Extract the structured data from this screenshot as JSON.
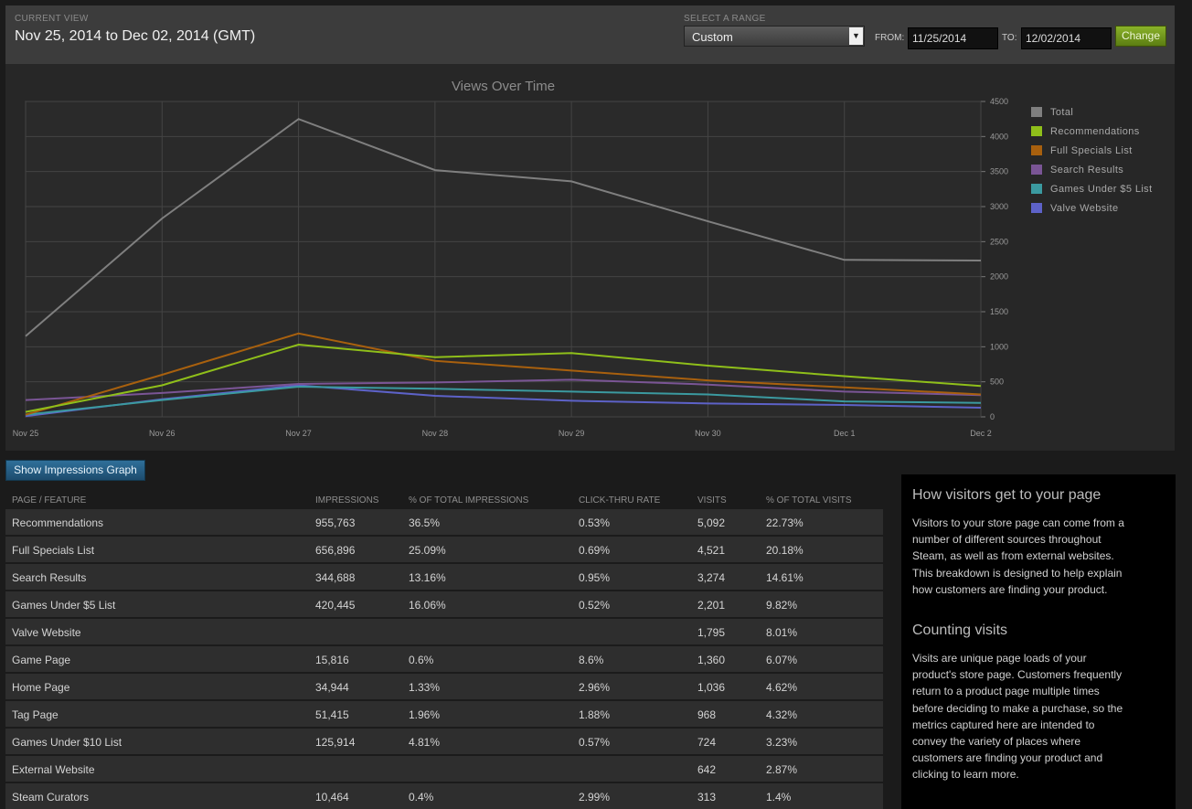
{
  "header": {
    "current_view_label": "CURRENT VIEW",
    "current_view_title": "Nov 25, 2014 to Dec 02, 2014 (GMT)",
    "range_label": "SELECT A RANGE",
    "range_value": "Custom",
    "from_label": "FROM:",
    "from_value": "11/25/2014",
    "to_label": "TO:",
    "to_value": "12/02/2014",
    "change_label": "Change"
  },
  "chart_data": {
    "type": "line",
    "title": "Views Over Time",
    "categories": [
      "Nov 25",
      "Nov 26",
      "Nov 27",
      "Nov 28",
      "Nov 29",
      "Nov 30",
      "Dec 1",
      "Dec 2"
    ],
    "ylim": [
      0,
      4500
    ],
    "yticks": [
      0,
      500,
      1000,
      1500,
      2000,
      2500,
      3000,
      3500,
      4000,
      4500
    ],
    "series": [
      {
        "name": "Total",
        "color": "#7f7f7f",
        "values": [
          1150,
          2830,
          4250,
          3520,
          3360,
          2790,
          2240,
          2230
        ]
      },
      {
        "name": "Recommendations",
        "color": "#8fbf1a",
        "values": [
          70,
          450,
          1030,
          850,
          910,
          730,
          580,
          440
        ]
      },
      {
        "name": "Full Specials List",
        "color": "#a8600e",
        "values": [
          30,
          600,
          1190,
          800,
          660,
          520,
          420,
          320
        ]
      },
      {
        "name": "Search Results",
        "color": "#7a5595",
        "values": [
          240,
          340,
          470,
          490,
          530,
          460,
          360,
          310
        ]
      },
      {
        "name": "Games Under $5 List",
        "color": "#3b9aa0",
        "values": [
          30,
          240,
          430,
          400,
          360,
          320,
          220,
          200
        ]
      },
      {
        "name": "Valve Website",
        "color": "#5d62c8",
        "values": [
          10,
          250,
          450,
          300,
          230,
          190,
          170,
          130
        ]
      }
    ]
  },
  "impressions_button": "Show Impressions Graph",
  "table": {
    "headers": [
      "PAGE / FEATURE",
      "IMPRESSIONS",
      "% OF TOTAL IMPRESSIONS",
      "CLICK-THRU RATE",
      "VISITS",
      "% OF TOTAL VISITS"
    ],
    "rows": [
      [
        "Recommendations",
        "955,763",
        "36.5%",
        "0.53%",
        "5,092",
        "22.73%"
      ],
      [
        "Full Specials List",
        "656,896",
        "25.09%",
        "0.69%",
        "4,521",
        "20.18%"
      ],
      [
        "Search Results",
        "344,688",
        "13.16%",
        "0.95%",
        "3,274",
        "14.61%"
      ],
      [
        "Games Under $5 List",
        "420,445",
        "16.06%",
        "0.52%",
        "2,201",
        "9.82%"
      ],
      [
        "Valve Website",
        "",
        "",
        "",
        "1,795",
        "8.01%"
      ],
      [
        "Game Page",
        "15,816",
        "0.6%",
        "8.6%",
        "1,360",
        "6.07%"
      ],
      [
        "Home Page",
        "34,944",
        "1.33%",
        "2.96%",
        "1,036",
        "4.62%"
      ],
      [
        "Tag Page",
        "51,415",
        "1.96%",
        "1.88%",
        "968",
        "4.32%"
      ],
      [
        "Games Under $10 List",
        "125,914",
        "4.81%",
        "0.57%",
        "724",
        "3.23%"
      ],
      [
        "External Website",
        "",
        "",
        "",
        "642",
        "2.87%"
      ],
      [
        "Steam Curators",
        "10,464",
        "0.4%",
        "2.99%",
        "313",
        "1.4%"
      ]
    ]
  },
  "info": {
    "heading1": "How visitors get to your page",
    "body1_lines": [
      "Visitors to your store page can come from a",
      "number of different sources throughout",
      "Steam, as well as from external websites.",
      "This breakdown is designed to help explain",
      "how customers are finding your product."
    ],
    "heading2": "Counting visits",
    "body2_lines": [
      "Visits are unique page loads of your",
      "product's store page. Customers frequently",
      "return to a product page multiple times",
      "before deciding to make a purchase, so the",
      "metrics captured here are intended to",
      "convey the variety of places where",
      "customers are finding your product and",
      "clicking to learn more."
    ]
  }
}
